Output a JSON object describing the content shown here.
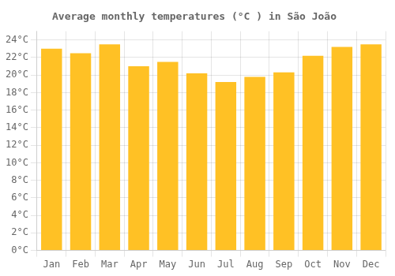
{
  "chart_data": {
    "type": "bar",
    "title": "Average monthly temperatures (°C ) in São João",
    "categories": [
      "Jan",
      "Feb",
      "Mar",
      "Apr",
      "May",
      "Jun",
      "Jul",
      "Aug",
      "Sep",
      "Oct",
      "Nov",
      "Dec"
    ],
    "values": [
      23.0,
      22.5,
      23.5,
      21.0,
      21.5,
      20.2,
      19.2,
      19.8,
      20.3,
      22.2,
      23.2,
      23.5
    ],
    "color": "#FFC125",
    "ylim": [
      0,
      25
    ],
    "yticks": [
      {
        "value": 0,
        "label": "0°C"
      },
      {
        "value": 2,
        "label": "2°C"
      },
      {
        "value": 4,
        "label": "4°C"
      },
      {
        "value": 6,
        "label": "6°C"
      },
      {
        "value": 8,
        "label": "8°C"
      },
      {
        "value": 10,
        "label": "10°C"
      },
      {
        "value": 12,
        "label": "12°C"
      },
      {
        "value": 14,
        "label": "14°C"
      },
      {
        "value": 16,
        "label": "16°C"
      },
      {
        "value": 18,
        "label": "18°C"
      },
      {
        "value": 20,
        "label": "20°C"
      },
      {
        "value": 22,
        "label": "22°C"
      },
      {
        "value": 24,
        "label": "24°C"
      }
    ],
    "grid": true
  }
}
